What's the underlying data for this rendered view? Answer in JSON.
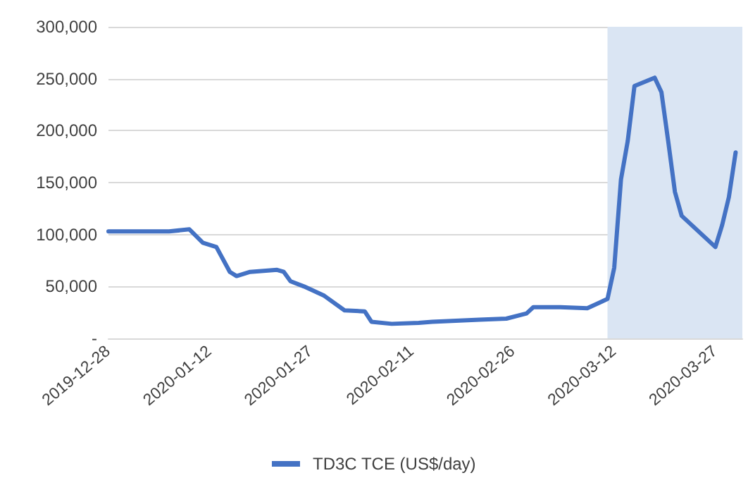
{
  "chart_data": {
    "type": "line",
    "x": [
      "2019-12-28",
      "2020-01-06",
      "2020-01-09",
      "2020-01-11",
      "2020-01-13",
      "2020-01-15",
      "2020-01-16",
      "2020-01-18",
      "2020-01-22",
      "2020-01-23",
      "2020-01-24",
      "2020-01-26",
      "2020-01-29",
      "2020-02-01",
      "2020-02-04",
      "2020-02-05",
      "2020-02-08",
      "2020-02-12",
      "2020-02-14",
      "2020-02-21",
      "2020-02-25",
      "2020-02-28",
      "2020-02-29",
      "2020-03-04",
      "2020-03-08",
      "2020-03-10",
      "2020-03-11",
      "2020-03-12",
      "2020-03-13",
      "2020-03-14",
      "2020-03-15",
      "2020-03-18",
      "2020-03-19",
      "2020-03-20",
      "2020-03-21",
      "2020-03-22",
      "2020-03-27",
      "2020-03-28",
      "2020-03-29",
      "2020-03-30"
    ],
    "series": [
      {
        "name": "TD3C TCE (US$/day)",
        "color": "#4472c4",
        "values": [
          103000,
          103000,
          105000,
          92000,
          88000,
          64000,
          60000,
          64000,
          66000,
          64000,
          55000,
          50000,
          41000,
          27000,
          26000,
          16000,
          14000,
          15000,
          16000,
          18000,
          19000,
          24000,
          30000,
          30000,
          29000,
          35000,
          38000,
          68000,
          153000,
          190000,
          243000,
          251000,
          237000,
          190000,
          141000,
          118000,
          88000,
          109000,
          136000,
          179000
        ]
      }
    ],
    "xlim": [
      "2019-12-28",
      "2020-03-31"
    ],
    "xticks": [
      "2019-12-28",
      "2020-01-12",
      "2020-01-27",
      "2020-02-11",
      "2020-02-26",
      "2020-03-12",
      "2020-03-27"
    ],
    "ylim": [
      0,
      300000
    ],
    "yticks": [
      {
        "value": 0,
        "label": "-"
      },
      {
        "value": 50000,
        "label": "50,000"
      },
      {
        "value": 100000,
        "label": "100,000"
      },
      {
        "value": 150000,
        "label": "150,000"
      },
      {
        "value": 200000,
        "label": "200,000"
      },
      {
        "value": 250000,
        "label": "250,000"
      },
      {
        "value": 300000,
        "label": "300,000"
      }
    ],
    "bands": [
      {
        "axis": "x",
        "from": "2020-03-11",
        "to": "2020-03-31",
        "color": "#dae5f3"
      }
    ],
    "grid": "y",
    "legend": "bottom",
    "marker": "none",
    "line_style": "solid"
  }
}
